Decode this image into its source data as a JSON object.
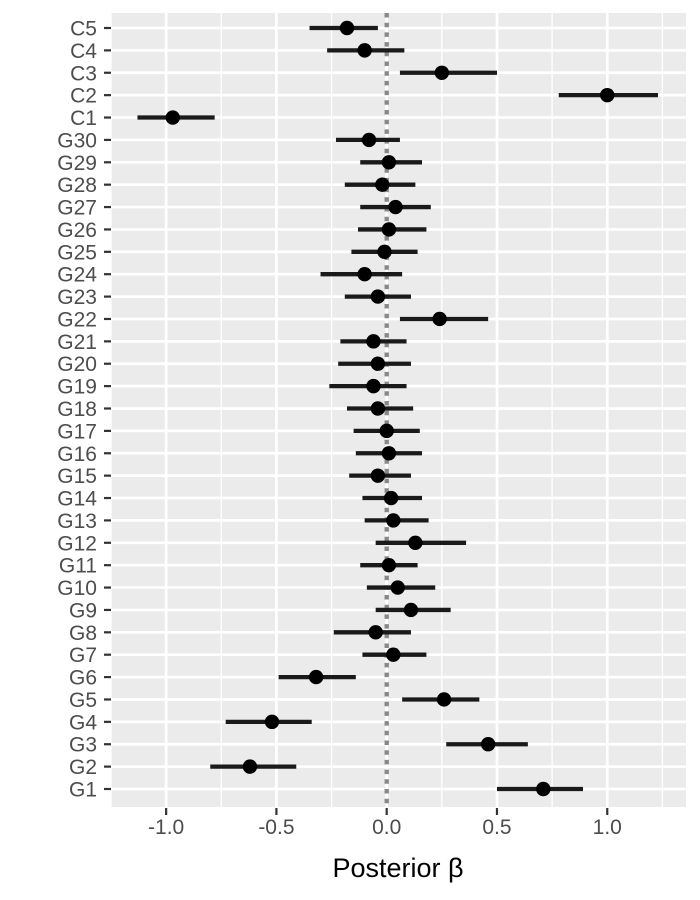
{
  "chart_data": {
    "type": "pointrange",
    "orientation": "horizontal",
    "title": "",
    "xlabel": "Posterior β",
    "ylabel": "",
    "legend": "none",
    "grid": true,
    "style": {
      "panel_background": "#EBEBEB",
      "grid_major_color": "#FFFFFF",
      "grid_minor_color": "#FFFFFF",
      "point_color": "#000000",
      "range_color": "#1A1A1A",
      "axis_text_color": "#4D4D4D",
      "axis_title_color": "#000000",
      "tick_mark_color": "#333333"
    },
    "x_axis": {
      "range": [
        -1.25,
        1.357
      ],
      "ticks": [
        -1.0,
        -0.5,
        0.0,
        0.5,
        1.0
      ],
      "tick_labels": [
        "-1.0",
        "-0.5",
        "0.0",
        "0.5",
        "1.0"
      ],
      "minor_ticks": [
        -1.25,
        -0.75,
        -0.25,
        0.25,
        0.75,
        1.25
      ]
    },
    "zero_line": {
      "x": 0,
      "linetype": "dashed",
      "color": "#888888"
    },
    "categories_top_to_bottom": [
      "C5",
      "C4",
      "C3",
      "C2",
      "C1",
      "G30",
      "G29",
      "G28",
      "G27",
      "G26",
      "G25",
      "G24",
      "G23",
      "G22",
      "G21",
      "G20",
      "G19",
      "G18",
      "G17",
      "G16",
      "G15",
      "G14",
      "G13",
      "G12",
      "G11",
      "G10",
      "G9",
      "G8",
      "G7",
      "G6",
      "G5",
      "G4",
      "G3",
      "G2",
      "G1"
    ],
    "points": [
      {
        "label": "C5",
        "estimate": -0.18,
        "lower": -0.35,
        "upper": -0.04
      },
      {
        "label": "C4",
        "estimate": -0.1,
        "lower": -0.27,
        "upper": 0.08
      },
      {
        "label": "C3",
        "estimate": 0.25,
        "lower": 0.06,
        "upper": 0.5
      },
      {
        "label": "C2",
        "estimate": 1.0,
        "lower": 0.78,
        "upper": 1.23
      },
      {
        "label": "C1",
        "estimate": -0.97,
        "lower": -1.13,
        "upper": -0.78
      },
      {
        "label": "G30",
        "estimate": -0.08,
        "lower": -0.23,
        "upper": 0.06
      },
      {
        "label": "G29",
        "estimate": 0.01,
        "lower": -0.12,
        "upper": 0.16
      },
      {
        "label": "G28",
        "estimate": -0.02,
        "lower": -0.19,
        "upper": 0.13
      },
      {
        "label": "G27",
        "estimate": 0.04,
        "lower": -0.12,
        "upper": 0.2
      },
      {
        "label": "G26",
        "estimate": 0.01,
        "lower": -0.13,
        "upper": 0.18
      },
      {
        "label": "G25",
        "estimate": -0.01,
        "lower": -0.16,
        "upper": 0.14
      },
      {
        "label": "G24",
        "estimate": -0.1,
        "lower": -0.3,
        "upper": 0.07
      },
      {
        "label": "G23",
        "estimate": -0.04,
        "lower": -0.19,
        "upper": 0.11
      },
      {
        "label": "G22",
        "estimate": 0.24,
        "lower": 0.06,
        "upper": 0.46
      },
      {
        "label": "G21",
        "estimate": -0.06,
        "lower": -0.21,
        "upper": 0.09
      },
      {
        "label": "G20",
        "estimate": -0.04,
        "lower": -0.22,
        "upper": 0.11
      },
      {
        "label": "G19",
        "estimate": -0.06,
        "lower": -0.26,
        "upper": 0.09
      },
      {
        "label": "G18",
        "estimate": -0.04,
        "lower": -0.18,
        "upper": 0.12
      },
      {
        "label": "G17",
        "estimate": 0.0,
        "lower": -0.15,
        "upper": 0.15
      },
      {
        "label": "G16",
        "estimate": 0.01,
        "lower": -0.14,
        "upper": 0.16
      },
      {
        "label": "G15",
        "estimate": -0.04,
        "lower": -0.17,
        "upper": 0.11
      },
      {
        "label": "G14",
        "estimate": 0.02,
        "lower": -0.11,
        "upper": 0.16
      },
      {
        "label": "G13",
        "estimate": 0.03,
        "lower": -0.1,
        "upper": 0.19
      },
      {
        "label": "G12",
        "estimate": 0.13,
        "lower": -0.05,
        "upper": 0.36
      },
      {
        "label": "G11",
        "estimate": 0.01,
        "lower": -0.12,
        "upper": 0.14
      },
      {
        "label": "G10",
        "estimate": 0.05,
        "lower": -0.09,
        "upper": 0.22
      },
      {
        "label": "G9",
        "estimate": 0.11,
        "lower": -0.05,
        "upper": 0.29
      },
      {
        "label": "G8",
        "estimate": -0.05,
        "lower": -0.24,
        "upper": 0.11
      },
      {
        "label": "G7",
        "estimate": 0.03,
        "lower": -0.11,
        "upper": 0.18
      },
      {
        "label": "G6",
        "estimate": -0.32,
        "lower": -0.49,
        "upper": -0.14
      },
      {
        "label": "G5",
        "estimate": 0.26,
        "lower": 0.07,
        "upper": 0.42
      },
      {
        "label": "G4",
        "estimate": -0.52,
        "lower": -0.73,
        "upper": -0.34
      },
      {
        "label": "G3",
        "estimate": 0.46,
        "lower": 0.27,
        "upper": 0.64
      },
      {
        "label": "G2",
        "estimate": -0.62,
        "lower": -0.8,
        "upper": -0.41
      },
      {
        "label": "G1",
        "estimate": 0.71,
        "lower": 0.5,
        "upper": 0.89
      }
    ]
  }
}
